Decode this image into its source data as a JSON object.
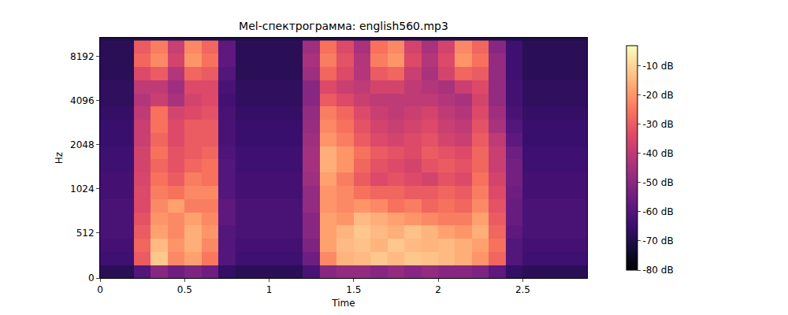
{
  "chart_data": {
    "type": "heatmap",
    "title": "Mel-спектрограмма: english560.mp3",
    "x_label": "Time",
    "y_label": "Hz",
    "xlim": [
      0,
      2.88
    ],
    "xticks": [
      0,
      0.5,
      1,
      1.5,
      2,
      2.5
    ],
    "ylim": [
      0,
      11025
    ],
    "yticks": [
      0,
      512,
      1024,
      2048,
      4096,
      8192
    ],
    "x": [
      0.05,
      0.15,
      0.25,
      0.35,
      0.45,
      0.55,
      0.65,
      0.75,
      0.85,
      0.95,
      1.05,
      1.15,
      1.25,
      1.35,
      1.45,
      1.55,
      1.65,
      1.75,
      1.85,
      1.95,
      2.05,
      2.15,
      2.25,
      2.35,
      2.45,
      2.55,
      2.65,
      2.75,
      2.85
    ],
    "y": [
      75,
      225,
      375,
      525,
      675,
      825,
      975,
      1189,
      1464,
      1803,
      2219,
      2732,
      3364,
      4141,
      5098,
      6277,
      7727,
      9514
    ],
    "z": [
      [
        -68,
        -68,
        -60,
        -50,
        -55,
        -52,
        -55,
        -66,
        -68,
        -68,
        -68,
        -68,
        -62,
        -50,
        -48,
        -48,
        -50,
        -48,
        -50,
        -48,
        -50,
        -50,
        -52,
        -58,
        -66,
        -68,
        -68,
        -68,
        -68
      ],
      [
        -64,
        -64,
        -30,
        -12,
        -22,
        -18,
        -25,
        -60,
        -64,
        -64,
        -64,
        -64,
        -55,
        -22,
        -15,
        -14,
        -12,
        -14,
        -12,
        -13,
        -14,
        -16,
        -20,
        -28,
        -60,
        -64,
        -64,
        -64,
        -64
      ],
      [
        -63,
        -63,
        -28,
        -14,
        -20,
        -16,
        -22,
        -60,
        -63,
        -63,
        -63,
        -63,
        -52,
        -18,
        -14,
        -13,
        -15,
        -12,
        -14,
        -15,
        -14,
        -16,
        -18,
        -26,
        -60,
        -63,
        -63,
        -63,
        -63
      ],
      [
        -62,
        -62,
        -30,
        -18,
        -22,
        -16,
        -20,
        -60,
        -62,
        -62,
        -62,
        -62,
        -50,
        -18,
        -15,
        -12,
        -14,
        -16,
        -13,
        -15,
        -18,
        -20,
        -16,
        -28,
        -58,
        -62,
        -62,
        -62,
        -62
      ],
      [
        -62,
        -62,
        -32,
        -20,
        -22,
        -18,
        -22,
        -58,
        -62,
        -62,
        -62,
        -62,
        -50,
        -18,
        -20,
        -14,
        -16,
        -18,
        -20,
        -22,
        -24,
        -24,
        -18,
        -30,
        -56,
        -62,
        -62,
        -62,
        -62
      ],
      [
        -62,
        -62,
        -34,
        -22,
        -18,
        -24,
        -24,
        -58,
        -62,
        -62,
        -62,
        -62,
        -48,
        -20,
        -22,
        -20,
        -22,
        -26,
        -24,
        -28,
        -26,
        -28,
        -22,
        -32,
        -56,
        -62,
        -62,
        -62,
        -62
      ],
      [
        -63,
        -63,
        -34,
        -24,
        -26,
        -22,
        -22,
        -60,
        -63,
        -63,
        -63,
        -63,
        -48,
        -20,
        -22,
        -26,
        -28,
        -28,
        -30,
        -30,
        -28,
        -30,
        -24,
        -34,
        -55,
        -63,
        -63,
        -63,
        -63
      ],
      [
        -63,
        -63,
        -35,
        -26,
        -30,
        -24,
        -26,
        -60,
        -63,
        -63,
        -63,
        -63,
        -46,
        -18,
        -24,
        -30,
        -34,
        -32,
        -34,
        -36,
        -32,
        -34,
        -26,
        -36,
        -54,
        -63,
        -63,
        -63,
        -63
      ],
      [
        -64,
        -64,
        -36,
        -28,
        -32,
        -28,
        -26,
        -60,
        -64,
        -64,
        -64,
        -64,
        -45,
        -16,
        -20,
        -28,
        -32,
        -34,
        -36,
        -32,
        -30,
        -32,
        -28,
        -38,
        -54,
        -64,
        -64,
        -64,
        -64
      ],
      [
        -64,
        -64,
        -36,
        -26,
        -32,
        -30,
        -28,
        -61,
        -64,
        -64,
        -64,
        -64,
        -45,
        -16,
        -20,
        -26,
        -30,
        -32,
        -34,
        -30,
        -32,
        -34,
        -28,
        -38,
        -55,
        -64,
        -64,
        -64,
        -64
      ],
      [
        -65,
        -65,
        -38,
        -28,
        -34,
        -30,
        -30,
        -62,
        -65,
        -65,
        -65,
        -65,
        -46,
        -20,
        -24,
        -30,
        -34,
        -36,
        -34,
        -32,
        -36,
        -38,
        -30,
        -40,
        -58,
        -65,
        -65,
        -65,
        -65
      ],
      [
        -65,
        -65,
        -38,
        -26,
        -34,
        -30,
        -30,
        -62,
        -65,
        -65,
        -65,
        -65,
        -47,
        -22,
        -26,
        -32,
        -36,
        -38,
        -36,
        -34,
        -38,
        -40,
        -32,
        -44,
        -60,
        -65,
        -65,
        -65,
        -65
      ],
      [
        -66,
        -66,
        -40,
        -26,
        -36,
        -34,
        -32,
        -62,
        -66,
        -66,
        -66,
        -66,
        -48,
        -24,
        -28,
        -34,
        -38,
        -40,
        -38,
        -36,
        -40,
        -42,
        -34,
        -46,
        -62,
        -66,
        -66,
        -66,
        -66
      ],
      [
        -67,
        -67,
        -42,
        -38,
        -44,
        -36,
        -34,
        -63,
        -67,
        -67,
        -67,
        -67,
        -50,
        -30,
        -34,
        -38,
        -40,
        -40,
        -40,
        -40,
        -42,
        -44,
        -36,
        -48,
        -63,
        -67,
        -67,
        -67,
        -67
      ],
      [
        -67,
        -67,
        -40,
        -40,
        -46,
        -34,
        -34,
        -62,
        -67,
        -67,
        -67,
        -67,
        -50,
        -34,
        -38,
        -40,
        -36,
        -36,
        -40,
        -42,
        -44,
        -38,
        -34,
        -48,
        -63,
        -67,
        -67,
        -67,
        -67
      ],
      [
        -68,
        -68,
        -34,
        -30,
        -42,
        -28,
        -30,
        -60,
        -68,
        -68,
        -68,
        -68,
        -46,
        -28,
        -34,
        -42,
        -30,
        -28,
        -38,
        -44,
        -36,
        -28,
        -30,
        -48,
        -64,
        -68,
        -68,
        -68,
        -68
      ],
      [
        -68,
        -68,
        -28,
        -22,
        -36,
        -20,
        -26,
        -58,
        -68,
        -68,
        -68,
        -68,
        -44,
        -24,
        -32,
        -42,
        -24,
        -20,
        -34,
        -42,
        -34,
        -20,
        -26,
        -48,
        -64,
        -68,
        -68,
        -68,
        -68
      ],
      [
        -68,
        -68,
        -30,
        -24,
        -38,
        -22,
        -28,
        -58,
        -68,
        -68,
        -68,
        -68,
        -46,
        -26,
        -34,
        -44,
        -26,
        -22,
        -36,
        -44,
        -36,
        -22,
        -28,
        -50,
        -64,
        -68,
        -68,
        -68,
        -68
      ]
    ],
    "colorbar": {
      "range": [
        -80,
        -3
      ],
      "ticks": [
        {
          "value": -10,
          "label": "-10 dB"
        },
        {
          "value": -20,
          "label": "-20 dB"
        },
        {
          "value": -30,
          "label": "-30 dB"
        },
        {
          "value": -40,
          "label": "-40 dB"
        },
        {
          "value": -50,
          "label": "-50 dB"
        },
        {
          "value": -60,
          "label": "-60 dB"
        },
        {
          "value": -70,
          "label": "-70 dB"
        },
        {
          "value": -80,
          "label": "-80 dB"
        }
      ]
    }
  }
}
